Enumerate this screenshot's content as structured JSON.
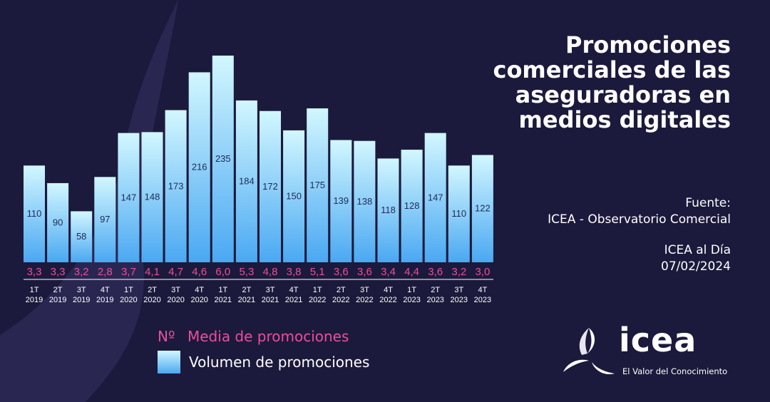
{
  "title_lines": [
    "Promociones",
    "comerciales de las",
    "aseguradoras en",
    "medios digitales"
  ],
  "source": {
    "label": "Fuente:",
    "value": "ICEA - Observatorio Comercial"
  },
  "publication": {
    "name": "ICEA al Día",
    "date": "07/02/2024"
  },
  "legend": {
    "avg_marker": "Nº",
    "avg_label": "Media de promociones",
    "vol_label": "Volumen de promociones"
  },
  "logo": {
    "name": "icea",
    "tagline": "El Valor del Conocimiento"
  },
  "colors": {
    "background": "#1b1a3c",
    "bar_top": "#d2f7ff",
    "bar_bottom": "#4aa8f2",
    "average_text": "#ea4f9a",
    "text": "#ffffff"
  },
  "chart_data": {
    "type": "bar",
    "categories": [
      "1T 2019",
      "2T 2019",
      "3T 2019",
      "4T 2019",
      "1T 2020",
      "2T 2020",
      "3T 2020",
      "4T 2020",
      "1T 2021",
      "2T 2021",
      "3T 2021",
      "4T 2021",
      "1T 2022",
      "2T 2022",
      "3T 2022",
      "4T 2022",
      "1T 2023",
      "2T 2023",
      "3T 2023",
      "4T 2023"
    ],
    "series": [
      {
        "name": "Volumen de promociones",
        "values": [
          110,
          90,
          58,
          97,
          147,
          148,
          173,
          216,
          235,
          184,
          172,
          150,
          175,
          139,
          138,
          118,
          128,
          147,
          110,
          122
        ]
      },
      {
        "name": "Media de promociones",
        "values": [
          "3,3",
          "3,3",
          "3,2",
          "2,8",
          "3,7",
          "4,1",
          "4,7",
          "4,6",
          "6,0",
          "5,3",
          "4,8",
          "3,8",
          "5,1",
          "3,6",
          "3,6",
          "3,4",
          "4,4",
          "3,6",
          "3,2",
          "3,0"
        ]
      }
    ],
    "ylim": [
      0,
      235
    ]
  }
}
